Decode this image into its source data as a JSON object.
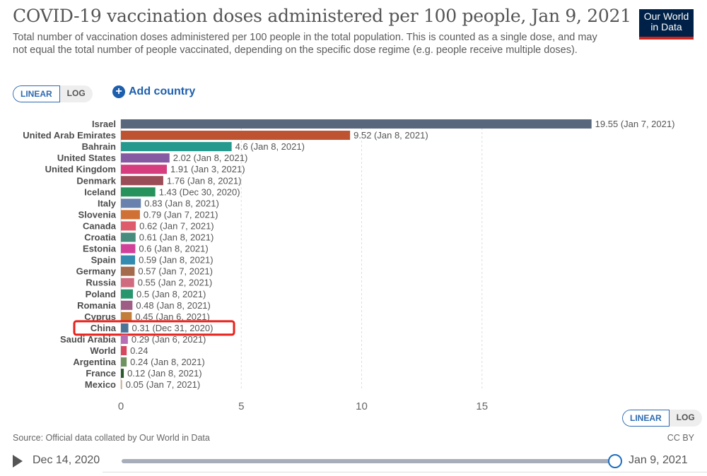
{
  "header": {
    "title": "COVID-19 vaccination doses administered per 100 people, Jan 9, 2021",
    "subtitle": "Total number of vaccination doses administered per 100 people in the total population. This is counted as a single dose, and may not equal the total number of people vaccinated, depending on the specific dose regime (e.g. people receive multiple doses).",
    "logo_line1": "Our World",
    "logo_line2": "in Data"
  },
  "controls": {
    "scale_linear": "LINEAR",
    "scale_log": "LOG",
    "active_scale": "LINEAR",
    "add_country": "Add country",
    "add_icon": "+"
  },
  "footer": {
    "source": "Source: Official data collated by Our World in Data",
    "license": "CC BY",
    "timeline_start": "Dec 14, 2020",
    "timeline_end": "Jan 9, 2021",
    "timeline_position": 1.0
  },
  "highlight": {
    "category": "China",
    "color": "#e8201a"
  },
  "chart_data": {
    "type": "bar",
    "orientation": "horizontal",
    "title": "COVID-19 vaccination doses administered per 100 people, Jan 9, 2021",
    "xlabel": "",
    "ylabel": "",
    "xlim": [
      0,
      20
    ],
    "xticks": [
      0,
      5,
      10,
      15
    ],
    "grid": true,
    "categories": [
      "Israel",
      "United Arab Emirates",
      "Bahrain",
      "United States",
      "United Kingdom",
      "Denmark",
      "Iceland",
      "Italy",
      "Slovenia",
      "Canada",
      "Croatia",
      "Estonia",
      "Spain",
      "Germany",
      "Russia",
      "Poland",
      "Romania",
      "Cyprus",
      "China",
      "Saudi Arabia",
      "World",
      "Argentina",
      "France",
      "Mexico"
    ],
    "values": [
      19.55,
      9.52,
      4.6,
      2.02,
      1.91,
      1.76,
      1.43,
      0.83,
      0.79,
      0.62,
      0.61,
      0.6,
      0.59,
      0.57,
      0.55,
      0.5,
      0.48,
      0.45,
      0.31,
      0.29,
      0.24,
      0.24,
      0.12,
      0.05
    ],
    "labels": [
      "19.55 (Jan 7, 2021)",
      "9.52 (Jan 8, 2021)",
      "4.6 (Jan 8, 2021)",
      "2.02 (Jan 8, 2021)",
      "1.91 (Jan 3, 2021)",
      "1.76 (Jan 8, 2021)",
      "1.43 (Dec 30, 2020)",
      "0.83 (Jan 8, 2021)",
      "0.79 (Jan 7, 2021)",
      "0.62 (Jan 7, 2021)",
      "0.61 (Jan 8, 2021)",
      "0.6 (Jan 8, 2021)",
      "0.59 (Jan 8, 2021)",
      "0.57 (Jan 7, 2021)",
      "0.55 (Jan 2, 2021)",
      "0.5 (Jan 8, 2021)",
      "0.48 (Jan 8, 2021)",
      "0.45 (Jan 6, 2021)",
      "0.31 (Dec 31, 2020)",
      "0.29 (Jan 6, 2021)",
      "0.24",
      "0.24 (Jan 8, 2021)",
      "0.12 (Jan 8, 2021)",
      "0.05 (Jan 7, 2021)"
    ],
    "colors": [
      "#58677c",
      "#bd5331",
      "#26998f",
      "#8659a3",
      "#d63d7e",
      "#9b4d57",
      "#27925b",
      "#6882ad",
      "#cf7035",
      "#de5b6c",
      "#478c7d",
      "#d14199",
      "#338bb0",
      "#a5694b",
      "#d06b7f",
      "#27966e",
      "#9e5d84",
      "#c27d3b",
      "#4b7497",
      "#b66fb5",
      "#d6485f",
      "#6f9360",
      "#2b5a2f",
      "#d8a97f"
    ]
  }
}
